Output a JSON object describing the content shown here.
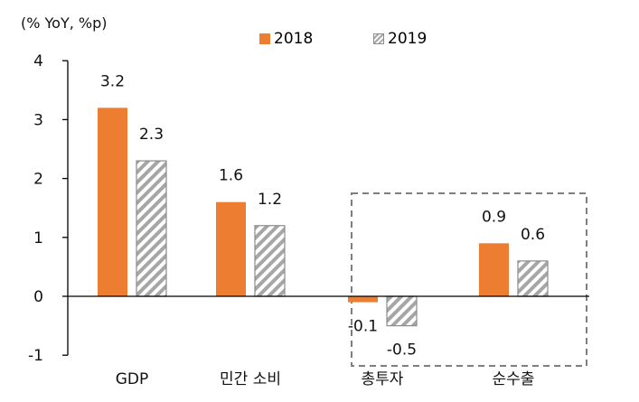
{
  "unit_label": "(% YoY, %p)",
  "legend": [
    {
      "name": "2018",
      "color": "#ed7d31"
    },
    {
      "name": "2019",
      "color": "#a6a6a6"
    }
  ],
  "chart_data": {
    "type": "bar",
    "categories": [
      "GDP",
      "민간 소비",
      "총투자",
      "순수출"
    ],
    "series": [
      {
        "name": "2018",
        "values": [
          3.2,
          1.6,
          -0.1,
          0.9
        ],
        "labels": [
          "3.2",
          "1.6",
          "-0.1",
          "0.9"
        ],
        "style": "solid",
        "color": "#ed7d31"
      },
      {
        "name": "2019",
        "values": [
          2.3,
          1.2,
          -0.5,
          0.6
        ],
        "labels": [
          "2.3",
          "1.2",
          "-0.5",
          "0.6"
        ],
        "style": "hatched",
        "color": "#a6a6a6"
      }
    ],
    "y_ticks": [
      "-1",
      "0",
      "1",
      "2",
      "3",
      "4"
    ],
    "ylim": [
      -1,
      4
    ],
    "ylabel": "(% YoY, %p)",
    "xlabel": "",
    "grid": false,
    "legend_position": "top-center",
    "highlight_box": {
      "categories": [
        "총투자",
        "순수출"
      ],
      "style": "dashed"
    }
  }
}
